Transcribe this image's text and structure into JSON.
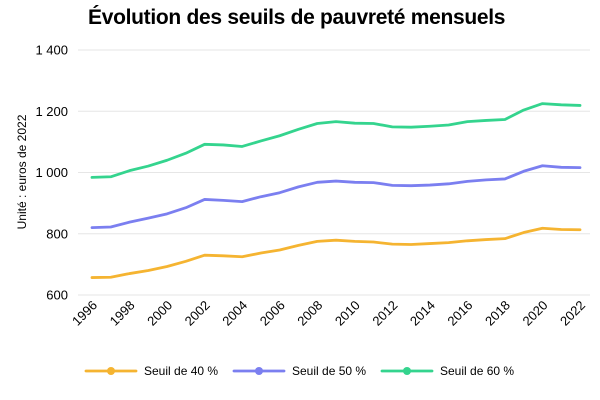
{
  "chart_data": {
    "type": "line",
    "title": "Évolution des seuils de pauvreté mensuels",
    "xlabel": "",
    "ylabel": "Unité : euros de 2022",
    "ylim": [
      600,
      1400
    ],
    "yticks": [
      600,
      800,
      1000,
      1200,
      1400
    ],
    "ytick_labels": [
      "600",
      "800",
      "1 000",
      "1 200",
      "1 400"
    ],
    "xlim": [
      1996,
      2022
    ],
    "xticks": [
      1996,
      1998,
      2000,
      2002,
      2004,
      2006,
      2008,
      2010,
      2012,
      2014,
      2016,
      2018,
      2020,
      2022
    ],
    "grid": true,
    "legend_position": "bottom",
    "x": [
      1996,
      1997,
      1998,
      1999,
      2000,
      2001,
      2002,
      2003,
      2004,
      2005,
      2006,
      2007,
      2008,
      2009,
      2010,
      2011,
      2012,
      2013,
      2014,
      2015,
      2016,
      2017,
      2018,
      2019,
      2020,
      2021,
      2022
    ],
    "series": [
      {
        "name": "Seuil de 40 %",
        "color": "#f5b431",
        "values": [
          657,
          658,
          670,
          680,
          693,
          710,
          730,
          728,
          725,
          737,
          747,
          762,
          775,
          779,
          775,
          773,
          766,
          765,
          768,
          771,
          777,
          781,
          784,
          804,
          818,
          814,
          813
        ]
      },
      {
        "name": "Seuil de 50 %",
        "color": "#7b7ff0",
        "values": [
          820,
          822,
          838,
          851,
          865,
          885,
          912,
          909,
          905,
          921,
          934,
          953,
          968,
          972,
          968,
          967,
          958,
          957,
          959,
          963,
          971,
          976,
          979,
          1004,
          1022,
          1017,
          1016
        ]
      },
      {
        "name": "Seuil de 60 %",
        "color": "#34d48e",
        "values": [
          984,
          986,
          1006,
          1021,
          1040,
          1063,
          1092,
          1090,
          1085,
          1103,
          1120,
          1141,
          1160,
          1166,
          1161,
          1160,
          1149,
          1148,
          1151,
          1155,
          1166,
          1170,
          1173,
          1204,
          1225,
          1221,
          1219
        ]
      }
    ]
  }
}
